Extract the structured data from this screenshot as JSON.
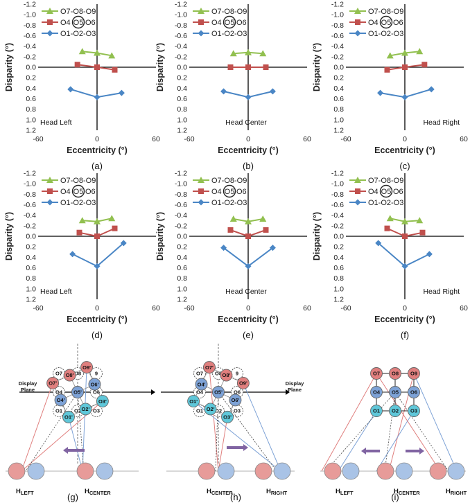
{
  "colors": {
    "green": "#92C050",
    "red": "#C0504D",
    "blue": "#4A86C5",
    "purple": "#8064A2",
    "pink_circle": "#E07F7E",
    "blue_circle": "#7DA2D6",
    "cyan_circle": "#5FC7D9",
    "light_red_circle": "#E79B99",
    "light_blue_circle": "#A9C3E6"
  },
  "chart_data": [
    {
      "id": "a",
      "type": "line",
      "caption": "(a)",
      "inner_label": "Head Left",
      "xlabel": "Eccentricity (°)",
      "ylabel": "Disparity (°)",
      "xlim": [
        -60,
        60
      ],
      "ylim": [
        -1.2,
        1.2
      ],
      "y_inverted": true,
      "x_ticks": [
        "-60",
        "0",
        "60"
      ],
      "y_ticks": [
        "-1.2",
        "-1.0",
        "-0.8",
        "-0.6",
        "-0.4",
        "-0.2",
        "0.0",
        "0.2",
        "0.4",
        "0.6",
        "0.8",
        "1.0",
        "1.2"
      ],
      "legend": [
        "O7-O8-O9",
        "O4",
        "O5",
        "O6",
        "O1-O2-O3"
      ],
      "series": [
        {
          "name": "O7-O8-O9",
          "marker": "triangle",
          "x": [
            -15,
            0,
            15
          ],
          "y": [
            -0.3,
            -0.27,
            -0.22
          ]
        },
        {
          "name": "O4-O5-O6",
          "marker": "square",
          "x": [
            -20,
            0,
            18
          ],
          "y": [
            -0.05,
            0.0,
            0.05
          ]
        },
        {
          "name": "O1-O2-O3",
          "marker": "diamond",
          "x": [
            -27,
            0,
            25
          ],
          "y": [
            0.42,
            0.57,
            0.49
          ]
        }
      ]
    },
    {
      "id": "b",
      "type": "line",
      "caption": "(b)",
      "inner_label": "Head Center",
      "xlabel": "Eccentricity (°)",
      "ylabel": "Disparity (°)",
      "xlim": [
        -60,
        60
      ],
      "ylim": [
        -1.2,
        1.2
      ],
      "y_inverted": true,
      "x_ticks": [
        "-60",
        "0",
        "60"
      ],
      "y_ticks": [
        "-1.2",
        "-1.0",
        "-0.8",
        "-0.6",
        "-0.4",
        "-0.2",
        "0.0",
        "0.2",
        "0.4",
        "0.6",
        "0.8",
        "1.0",
        "1.2"
      ],
      "legend": [
        "O7-O8-O9",
        "O4",
        "O5",
        "O6",
        "O1-O2-O3"
      ],
      "series": [
        {
          "name": "O7-O8-O9",
          "marker": "triangle",
          "x": [
            -15,
            0,
            15
          ],
          "y": [
            -0.26,
            -0.28,
            -0.26
          ]
        },
        {
          "name": "O4-O5-O6",
          "marker": "square",
          "x": [
            -18,
            0,
            18
          ],
          "y": [
            0.0,
            0.0,
            0.0
          ]
        },
        {
          "name": "O1-O2-O3",
          "marker": "diamond",
          "x": [
            -25,
            0,
            25
          ],
          "y": [
            0.46,
            0.57,
            0.46
          ]
        }
      ]
    },
    {
      "id": "c",
      "type": "line",
      "caption": "(c)",
      "inner_label": "Head Right",
      "xlabel": "Eccentricity (°)",
      "ylabel": "Disparity (°)",
      "xlim": [
        -60,
        60
      ],
      "ylim": [
        -1.2,
        1.2
      ],
      "y_inverted": true,
      "x_ticks": [
        "-60",
        "0",
        "60"
      ],
      "y_ticks": [
        "-1.2",
        "-1.0",
        "-0.8",
        "-0.6",
        "-0.4",
        "-0.2",
        "0.0",
        "0.2",
        "0.4",
        "0.6",
        "0.8",
        "1.0",
        "1.2"
      ],
      "legend": [
        "O7-O8-O9",
        "O4",
        "O5",
        "O6",
        "O1-O2-O3"
      ],
      "series": [
        {
          "name": "O7-O8-O9",
          "marker": "triangle",
          "x": [
            -15,
            0,
            15
          ],
          "y": [
            -0.22,
            -0.27,
            -0.3
          ]
        },
        {
          "name": "O4-O5-O6",
          "marker": "square",
          "x": [
            -18,
            0,
            20
          ],
          "y": [
            0.05,
            0.0,
            -0.05
          ]
        },
        {
          "name": "O1-O2-O3",
          "marker": "diamond",
          "x": [
            -25,
            0,
            27
          ],
          "y": [
            0.49,
            0.57,
            0.42
          ]
        }
      ]
    },
    {
      "id": "d",
      "type": "line",
      "caption": "(d)",
      "inner_label": "Head Left",
      "xlabel": "Eccentricity (°)",
      "ylabel": "Disparity (°)",
      "xlim": [
        -60,
        60
      ],
      "ylim": [
        -1.2,
        1.2
      ],
      "y_inverted": true,
      "x_ticks": [
        "-60",
        "0",
        "60"
      ],
      "y_ticks": [
        "-1.2",
        "-1.0",
        "-0.8",
        "-0.6",
        "-0.4",
        "-0.2",
        "0.0",
        "0.2",
        "0.4",
        "0.6",
        "0.8",
        "1.0",
        "1.2"
      ],
      "legend": [
        "O7-O8-O9",
        "O4",
        "O5",
        "O6",
        "O1-O2-O3"
      ],
      "series": [
        {
          "name": "O7-O8-O9",
          "marker": "triangle",
          "x": [
            -15,
            0,
            15
          ],
          "y": [
            -0.3,
            -0.28,
            -0.34
          ]
        },
        {
          "name": "O4-O5-O6",
          "marker": "square",
          "x": [
            -18,
            0,
            18
          ],
          "y": [
            -0.07,
            0.0,
            -0.15
          ]
        },
        {
          "name": "O1-O2-O3",
          "marker": "diamond",
          "x": [
            -25,
            0,
            27
          ],
          "y": [
            0.34,
            0.57,
            0.13
          ]
        }
      ]
    },
    {
      "id": "e",
      "type": "line",
      "caption": "(e)",
      "inner_label": "Head Center",
      "xlabel": "Eccentricity (°)",
      "ylabel": "Disparity (°)",
      "xlim": [
        -60,
        60
      ],
      "ylim": [
        -1.2,
        1.2
      ],
      "y_inverted": true,
      "x_ticks": [
        "-60",
        "0",
        "60"
      ],
      "y_ticks": [
        "-1.2",
        "-1.0",
        "-0.8",
        "-0.6",
        "-0.4",
        "-0.2",
        "0.0",
        "0.2",
        "0.4",
        "0.6",
        "0.8",
        "1.0",
        "1.2"
      ],
      "legend": [
        "O7-O8-O9",
        "O4",
        "O5",
        "O6",
        "O1-O2-O3"
      ],
      "series": [
        {
          "name": "O7-O8-O9",
          "marker": "triangle",
          "x": [
            -15,
            0,
            15
          ],
          "y": [
            -0.33,
            -0.28,
            -0.33
          ]
        },
        {
          "name": "O4-O5-O6",
          "marker": "square",
          "x": [
            -18,
            0,
            18
          ],
          "y": [
            -0.12,
            0.0,
            -0.12
          ]
        },
        {
          "name": "O1-O2-O3",
          "marker": "diamond",
          "x": [
            -25,
            0,
            25
          ],
          "y": [
            0.22,
            0.57,
            0.22
          ]
        }
      ]
    },
    {
      "id": "f",
      "type": "line",
      "caption": "(f)",
      "inner_label": "Head Right",
      "xlabel": "Eccentricity (°)",
      "ylabel": "Disparity (°)",
      "xlim": [
        -60,
        60
      ],
      "ylim": [
        -1.2,
        1.2
      ],
      "y_inverted": true,
      "x_ticks": [
        "-60",
        "0",
        "60"
      ],
      "y_ticks": [
        "-1.2",
        "-1.0",
        "-0.8",
        "-0.6",
        "-0.4",
        "-0.2",
        "0.0",
        "0.2",
        "0.4",
        "0.6",
        "0.8",
        "1.0",
        "1.2"
      ],
      "legend": [
        "O7-O8-O9",
        "O4",
        "O5",
        "O6",
        "O1-O2-O3"
      ],
      "series": [
        {
          "name": "O7-O8-O9",
          "marker": "triangle",
          "x": [
            -15,
            0,
            15
          ],
          "y": [
            -0.34,
            -0.28,
            -0.3
          ]
        },
        {
          "name": "O4-O5-O6",
          "marker": "square",
          "x": [
            -18,
            0,
            18
          ],
          "y": [
            -0.15,
            0.0,
            -0.07
          ]
        },
        {
          "name": "O1-O2-O3",
          "marker": "diamond",
          "x": [
            -27,
            0,
            25
          ],
          "y": [
            0.13,
            0.57,
            0.34
          ]
        }
      ]
    }
  ],
  "diagrams": {
    "display_plane_label_1": "Display",
    "display_plane_label_2": "Plane",
    "head_main": "H",
    "head_left_sub": "LEFT",
    "head_center_sub": "CENTER",
    "head_right_sub": "RIGHT",
    "captions": [
      "(g)",
      "(h)",
      "(i)"
    ],
    "grid_labels": [
      "O7",
      "O8",
      "9",
      "O4",
      "O5",
      "O6",
      "O1",
      "O2",
      "O3"
    ],
    "grid_labels_i": [
      "O7",
      "O8",
      "O9",
      "O4",
      "O5",
      "O6",
      "O1",
      "O2",
      "O3"
    ],
    "rotated_g": [
      "O7'",
      "O8'",
      "O9'",
      "O4'",
      "O5'",
      "O6'",
      "O1'",
      "O2'",
      "O3'"
    ],
    "rotated_h": [
      "O9'",
      "O8'",
      "O7'",
      "O6'",
      "O5'",
      "O4'",
      "O3'",
      "O2'",
      "O1'"
    ]
  }
}
